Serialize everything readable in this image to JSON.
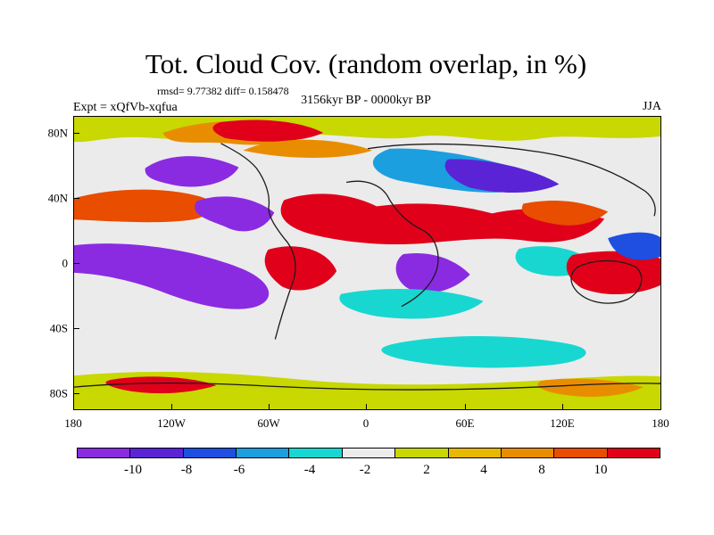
{
  "title": "Tot. Cloud Cov. (random overlap, in %)",
  "stats": "rmsd= 9.77382 diff= 0.158478",
  "experiment": "Expt = xQfVb-xqfua",
  "period": "3156kyr BP - 0000kyr BP",
  "season": "JJA",
  "axes": {
    "x_ticks": [
      "180",
      "120W",
      "60W",
      "0",
      "60E",
      "120E",
      "180"
    ],
    "y_ticks": [
      "80N",
      "40N",
      "0",
      "40S",
      "80S"
    ]
  },
  "colorbar": {
    "colors": [
      "#8a2be2",
      "#5a24d6",
      "#1e4fe0",
      "#1c9fdf",
      "#18d7d0",
      "#ececec",
      "#c8d800",
      "#e8b800",
      "#e98d00",
      "#e84d00",
      "#e0001a"
    ],
    "labels": [
      "-10",
      "-8",
      "-6",
      "-4",
      "-2",
      "2",
      "4",
      "8",
      "10"
    ]
  },
  "map_data": {
    "type": "filled-contour-map",
    "projection": "cylindrical-equidistant",
    "lon_range": [
      -180,
      180
    ],
    "lat_range": [
      -90,
      90
    ],
    "levels": [
      -10,
      -8,
      -6,
      -4,
      -2,
      2,
      4,
      8,
      10
    ]
  }
}
